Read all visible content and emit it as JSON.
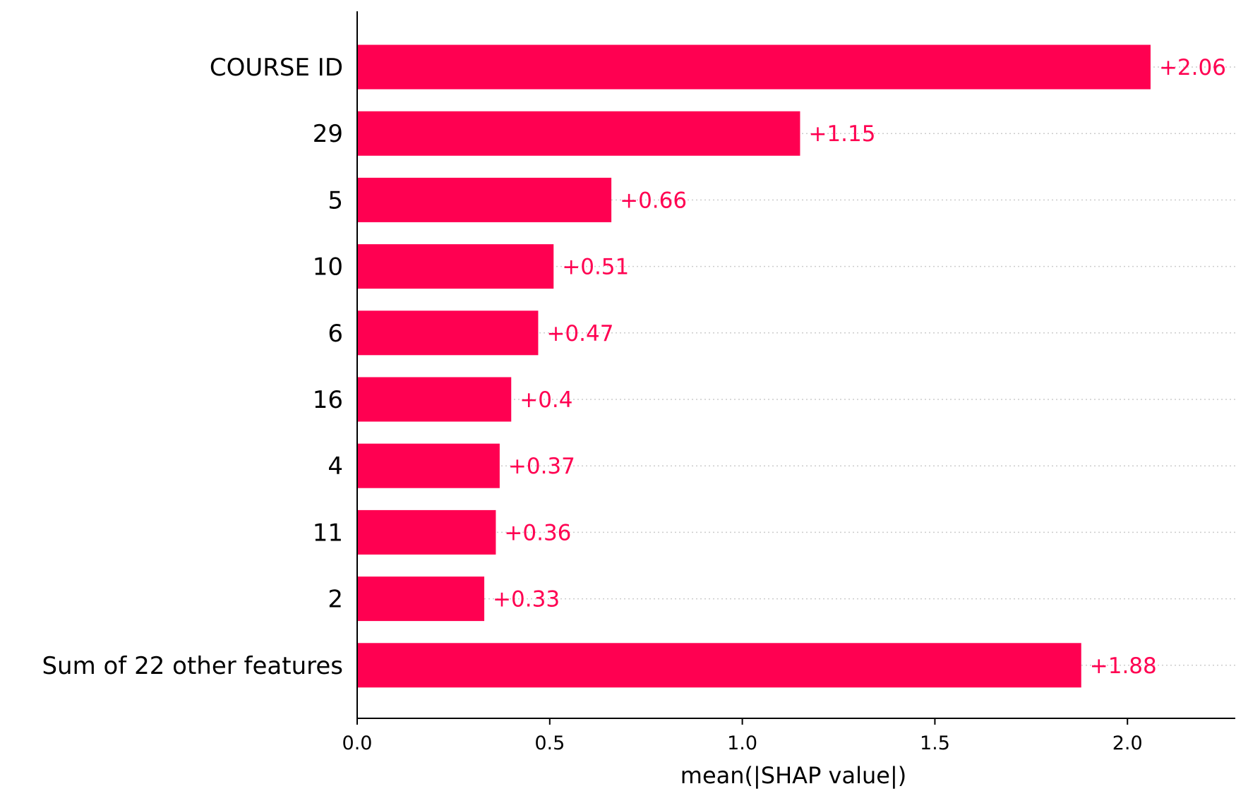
{
  "chart_data": {
    "type": "bar",
    "orientation": "horizontal",
    "title": "",
    "xlabel": "mean(|SHAP value|)",
    "ylabel": "",
    "categories": [
      "COURSE ID",
      "29",
      "5",
      "10",
      "6",
      "16",
      "4",
      "11",
      "2",
      "Sum of 22 other features"
    ],
    "values": [
      2.06,
      1.15,
      0.66,
      0.51,
      0.47,
      0.4,
      0.37,
      0.36,
      0.33,
      1.88
    ],
    "value_labels": [
      "+2.06",
      "+1.15",
      "+0.66",
      "+0.51",
      "+0.47",
      "+0.4",
      "+0.37",
      "+0.36",
      "+0.33",
      "+1.88"
    ],
    "xlim": [
      0,
      2.28
    ],
    "xticks": [
      0.0,
      0.5,
      1.0,
      1.5,
      2.0
    ],
    "xtick_labels": [
      "0.0",
      "0.5",
      "1.0",
      "1.5",
      "2.0"
    ],
    "grid": "dotted row guides",
    "legend": "none",
    "colors": {
      "bar": "#ff0051",
      "label": "#ff0051",
      "axis": "#000000",
      "guide": "#cccccc"
    }
  }
}
